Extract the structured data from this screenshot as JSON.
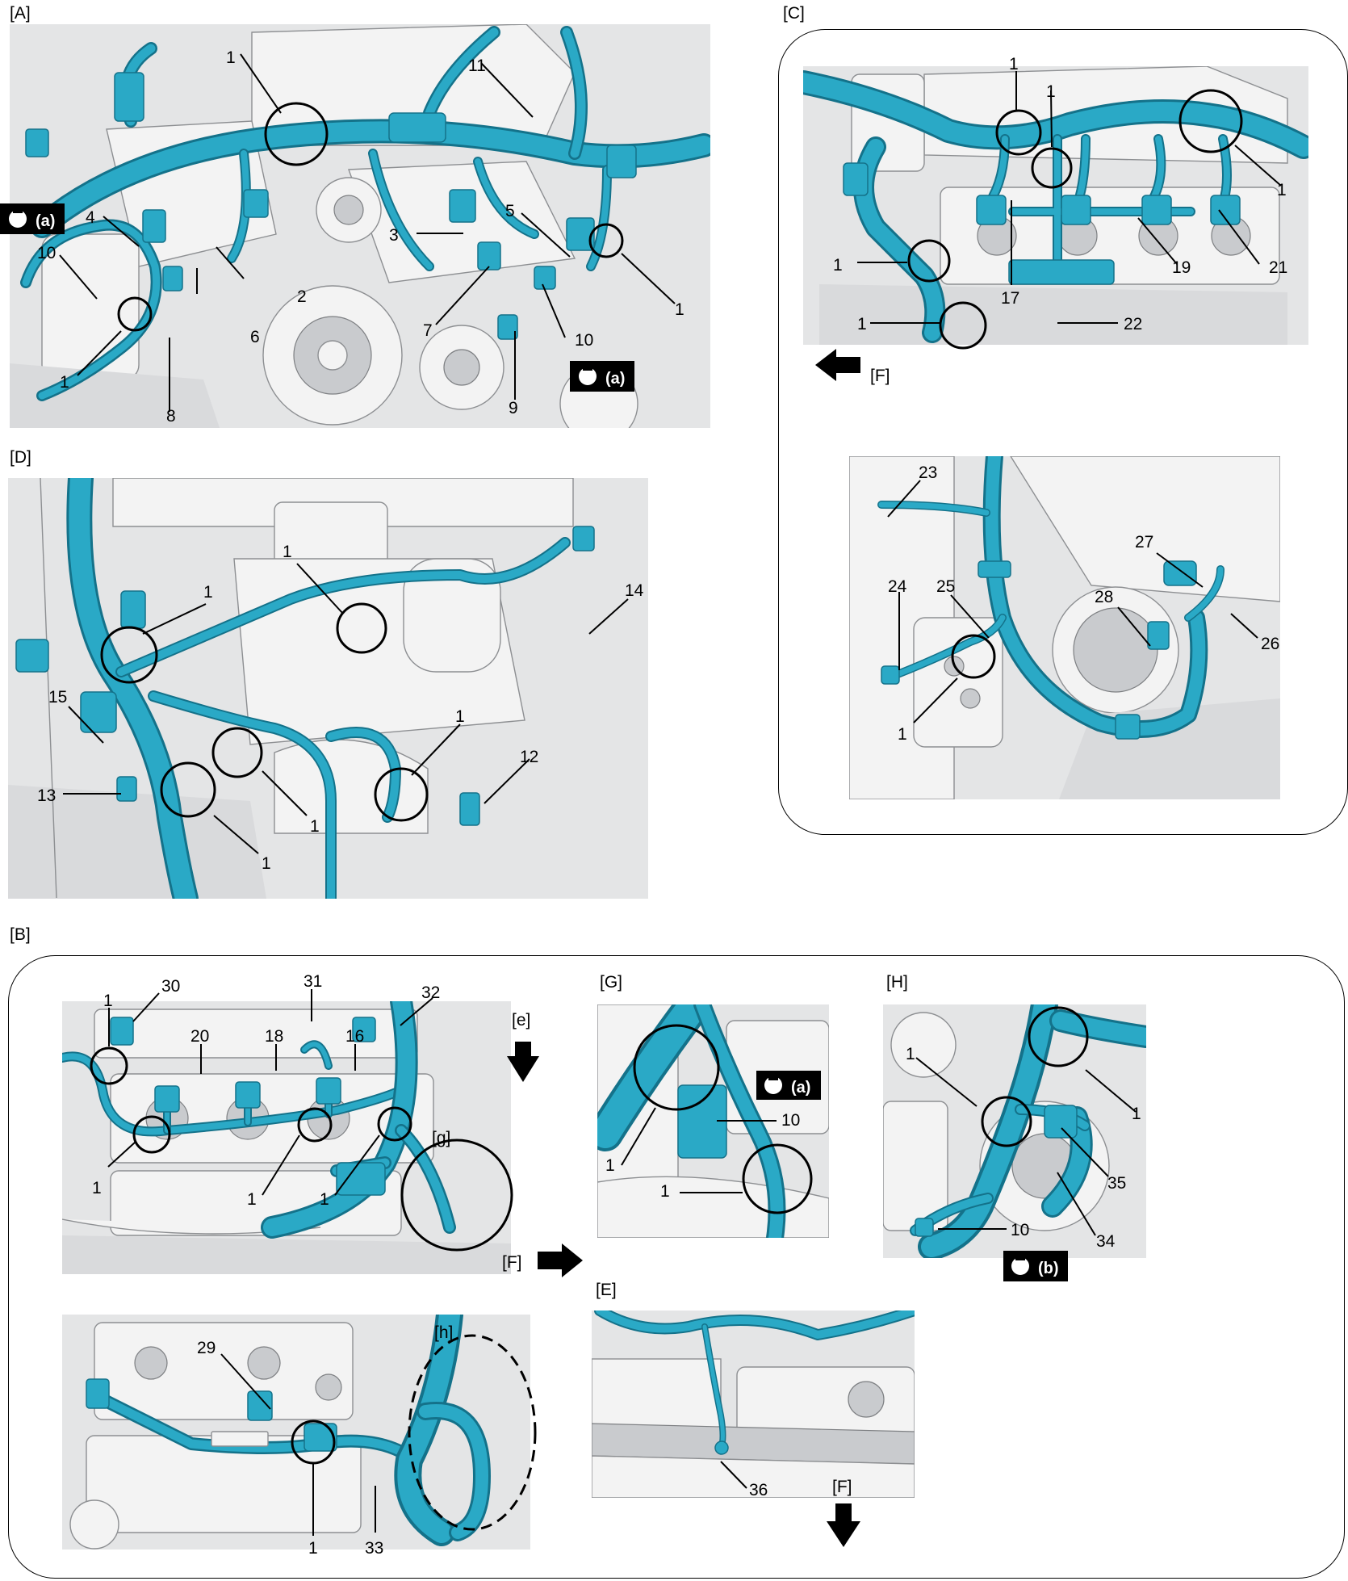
{
  "sections": {
    "A": "[A]",
    "B": "[B]",
    "C": "[C]",
    "D": "[D]",
    "E": "[E]",
    "G": "[G]",
    "H": "[H]"
  },
  "tags": {
    "e": "[e]",
    "g": "[g]",
    "h": "[h]",
    "F": "[F]"
  },
  "badges": {
    "a": "(a)",
    "b": "(b)"
  },
  "callouts": {
    "n1": "1",
    "n2": "2",
    "n3": "3",
    "n4": "4",
    "n5": "5",
    "n6": "6",
    "n7": "7",
    "n8": "8",
    "n9": "9",
    "n10": "10",
    "n11": "11",
    "n12": "12",
    "n13": "13",
    "n14": "14",
    "n15": "15",
    "n16": "16",
    "n17": "17",
    "n18": "18",
    "n19": "19",
    "n20": "20",
    "n21": "21",
    "n22": "22",
    "n23": "23",
    "n24": "24",
    "n25": "25",
    "n26": "26",
    "n27": "27",
    "n28": "28",
    "n29": "29",
    "n30": "30",
    "n31": "31",
    "n32": "32",
    "n33": "33",
    "n34": "34",
    "n35": "35",
    "n36": "36"
  },
  "colors": {
    "harness": "#2aa9c6",
    "harness_edge": "#14728a",
    "badge": "#000000"
  }
}
